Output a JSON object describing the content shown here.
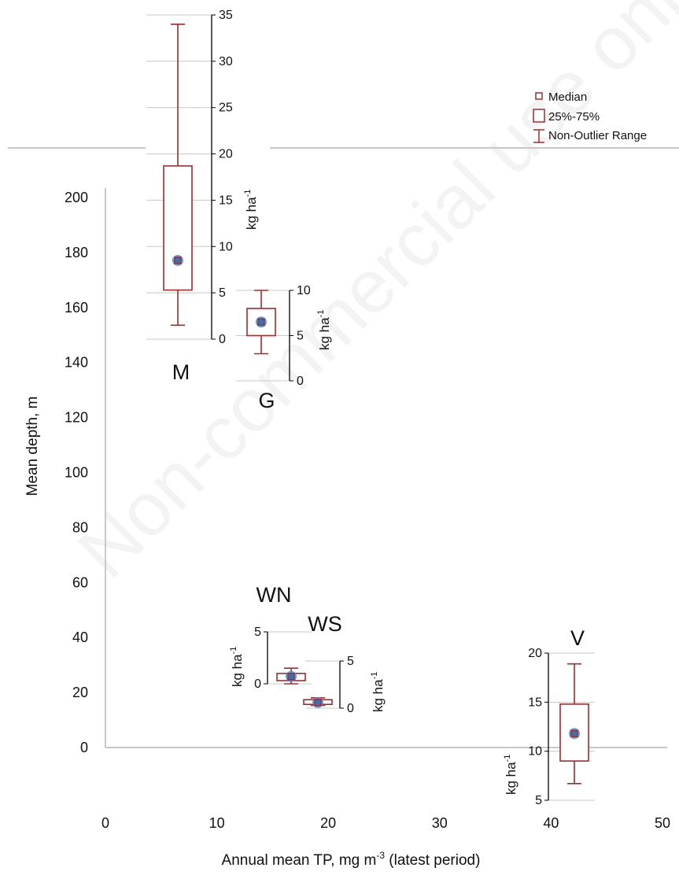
{
  "watermark": "Non-commercial use only",
  "legend": {
    "median": "Median",
    "box": "25%-75%",
    "whisker": "Non-Outlier Range"
  },
  "colors": {
    "box": "#a52a2a",
    "median_fill": "#4a8fd6",
    "grid": "#c8c8c8",
    "axis": "#000000"
  },
  "chart_data": {
    "type": "scatter",
    "xlabel": "Annual mean TP, mg m-3 (latest period)",
    "ylabel": "Mean depth, m",
    "xlim": [
      0,
      50
    ],
    "ylim": [
      0,
      200
    ],
    "x_ticks": [
      0,
      10,
      20,
      30,
      40,
      50
    ],
    "y_ticks": [
      0,
      20,
      40,
      60,
      80,
      100,
      120,
      140,
      160,
      180,
      200
    ],
    "points": [
      {
        "label": "M",
        "x": 6.3,
        "y": 155,
        "unit": "kg ha-1",
        "sub_ticks": [
          0,
          5,
          10,
          15,
          20,
          25,
          30,
          35
        ],
        "box": {
          "median": 8.5,
          "q1": 5.3,
          "q3": 18.7,
          "min": 1.5,
          "max": 34
        }
      },
      {
        "label": "G",
        "x": 14,
        "y": 155,
        "unit": "kg ha-1",
        "sub_ticks": [
          0,
          5,
          10
        ],
        "box": {
          "median": 6.5,
          "q1": 5.0,
          "q3": 8.0,
          "min": 3.0,
          "max": 10.0
        }
      },
      {
        "label": "WN",
        "x": 16.6,
        "y": 25,
        "unit": "kg ha-1",
        "sub_ticks": [
          0,
          5
        ],
        "box": {
          "median": 0.7,
          "q1": 0.3,
          "q3": 1.0,
          "min": 0.0,
          "max": 1.5
        }
      },
      {
        "label": "WS",
        "x": 19,
        "y": 20,
        "unit": "kg ha-1",
        "sub_ticks": [
          0,
          5
        ],
        "box": {
          "median": 0.6,
          "q1": 0.4,
          "q3": 0.9,
          "min": 0.3,
          "max": 1.1
        }
      },
      {
        "label": "V",
        "x": 42,
        "y": 15,
        "unit": "kg ha-1",
        "sub_ticks": [
          5,
          10,
          15,
          20
        ],
        "box": {
          "median": 11.8,
          "q1": 9.0,
          "q3": 14.8,
          "min": 6.7,
          "max": 18.9
        }
      }
    ]
  }
}
